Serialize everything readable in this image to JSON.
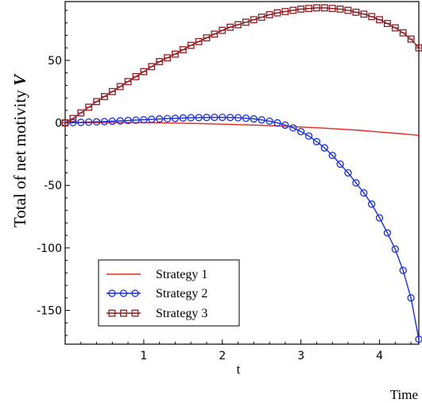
{
  "chart_data": {
    "type": "line",
    "ylabel_plain": "Total of net motivity ",
    "ylabel_italic": "V",
    "xlabel_axis": "t",
    "xlabel_below": "Time",
    "xlim": [
      0,
      4.5
    ],
    "ylim": [
      -177,
      97
    ],
    "xticks": [
      1,
      2,
      3,
      4
    ],
    "xtick_labels": [
      "1",
      "2",
      "3",
      "4"
    ],
    "yticks": [
      50,
      0,
      -50,
      -100,
      -150
    ],
    "ytick_labels": [
      "50",
      "0",
      "-50",
      "-100",
      "-150"
    ],
    "grid": false,
    "legend_placement": "bottom-left",
    "series": [
      {
        "name": "Strategy 1",
        "color": "#e8261f",
        "marker": "none",
        "x": [
          0,
          0.25,
          0.5,
          0.75,
          1,
          1.25,
          1.5,
          1.75,
          2,
          2.25,
          2.5,
          2.75,
          3,
          3.25,
          3.5,
          3.75,
          4,
          4.25,
          4.5
        ],
        "y": [
          0,
          0.2,
          0.3,
          0.3,
          0.2,
          0,
          -0.3,
          -0.6,
          -1,
          -1.5,
          -2,
          -2.6,
          -3.3,
          -4,
          -5,
          -6,
          -7.3,
          -8.5,
          -10
        ]
      },
      {
        "name": "Strategy 2",
        "color": "#1a2fd6",
        "marker": "circle",
        "x": [
          0,
          0.1,
          0.2,
          0.3,
          0.4,
          0.5,
          0.6,
          0.7,
          0.8,
          0.9,
          1,
          1.1,
          1.2,
          1.3,
          1.4,
          1.5,
          1.6,
          1.7,
          1.8,
          1.9,
          2,
          2.1,
          2.2,
          2.3,
          2.4,
          2.5,
          2.6,
          2.7,
          2.8,
          2.9,
          3,
          3.1,
          3.2,
          3.3,
          3.4,
          3.5,
          3.6,
          3.7,
          3.8,
          3.9,
          4,
          4.1,
          4.2,
          4.3,
          4.4,
          4.5
        ],
        "y": [
          0,
          0.2,
          0.4,
          0.6,
          0.8,
          1,
          1.3,
          1.6,
          1.9,
          2.2,
          2.5,
          2.8,
          3.1,
          3.4,
          3.6,
          3.9,
          4.1,
          4.2,
          4.3,
          4.4,
          4.4,
          4.3,
          4.1,
          3.7,
          3.2,
          2.4,
          1.4,
          0,
          -1.8,
          -4,
          -7,
          -10.5,
          -15,
          -20,
          -26,
          -33,
          -40,
          -48,
          -56,
          -65,
          -76,
          -88,
          -101,
          -118,
          -140,
          -173
        ]
      },
      {
        "name": "Strategy 3",
        "color": "#8f1d22",
        "marker": "square",
        "x": [
          0,
          0.1,
          0.2,
          0.3,
          0.4,
          0.5,
          0.6,
          0.7,
          0.8,
          0.9,
          1,
          1.1,
          1.2,
          1.3,
          1.4,
          1.5,
          1.6,
          1.7,
          1.8,
          1.9,
          2,
          2.1,
          2.2,
          2.3,
          2.4,
          2.5,
          2.6,
          2.7,
          2.8,
          2.9,
          3,
          3.1,
          3.2,
          3.3,
          3.4,
          3.5,
          3.6,
          3.7,
          3.8,
          3.9,
          4,
          4.1,
          4.2,
          4.3,
          4.4,
          4.5
        ],
        "y": [
          0,
          3.5,
          8,
          12.5,
          17,
          21,
          25,
          29,
          33,
          37,
          41,
          45,
          49,
          52,
          55,
          58.5,
          62,
          65,
          68,
          71,
          74,
          76.5,
          78.5,
          80.5,
          82.5,
          84.5,
          86.5,
          88,
          89,
          90,
          91,
          91.5,
          92,
          92,
          91.5,
          91,
          90,
          88.5,
          87,
          85,
          82.5,
          79.5,
          76,
          72,
          67,
          60
        ]
      }
    ]
  }
}
